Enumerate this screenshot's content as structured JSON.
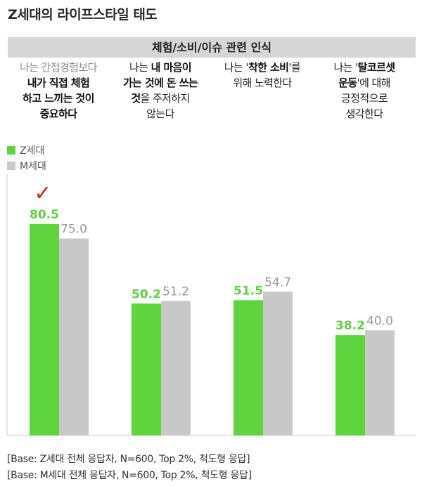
{
  "title": "Z세대의 라이프스타일 태도",
  "banner": "체험/소비/이슈 관련 인식",
  "descriptions": [
    {
      "lines": [
        [
          {
            "t": "나는 간접경험보다",
            "s": "gray"
          }
        ],
        [
          {
            "t": "내가 직접 체험",
            "s": "bold"
          }
        ],
        [
          {
            "t": "하고 느끼는 것이",
            "s": "bold"
          }
        ],
        [
          {
            "t": "중요하다",
            "s": "bold"
          }
        ]
      ]
    },
    {
      "lines": [
        [
          {
            "t": "나는 ",
            "s": "normal"
          },
          {
            "t": "내 마음이",
            "s": "bold"
          }
        ],
        [
          {
            "t": "가는 것에 돈 쓰는",
            "s": "bold"
          }
        ],
        [
          {
            "t": "것",
            "s": "bold"
          },
          {
            "t": "을 주저하지",
            "s": "normal"
          }
        ],
        [
          {
            "t": "않는다",
            "s": "normal"
          }
        ]
      ]
    },
    {
      "lines": [
        [
          {
            "t": "나는 '",
            "s": "normal"
          },
          {
            "t": "착한 소비",
            "s": "bold"
          },
          {
            "t": "'를",
            "s": "normal"
          }
        ],
        [
          {
            "t": "위해 노력한다",
            "s": "normal"
          }
        ]
      ]
    },
    {
      "lines": [
        [
          {
            "t": "나는 '",
            "s": "normal"
          },
          {
            "t": "탈코르셋",
            "s": "bold"
          }
        ],
        [
          {
            "t": "운동",
            "s": "bold"
          },
          {
            "t": "'에 대해",
            "s": "normal"
          }
        ],
        [
          {
            "t": "긍정적으로",
            "s": "normal"
          }
        ],
        [
          {
            "t": "생각한다",
            "s": "normal"
          }
        ]
      ]
    }
  ],
  "colors": {
    "z": "#5ed43d",
    "m": "#c8c8c8",
    "check": "#e02020",
    "m_label": "#999999"
  },
  "chart_data": {
    "type": "bar",
    "categories": [
      "나는 간접경험보다 내가 직접 체험하고 느끼는 것이 중요하다",
      "나는 내 마음이 가는 것에 돈 쓰는 것을 주저하지 않는다",
      "나는 '착한 소비'를 위해 노력한다",
      "나는 '탈코르셋 운동'에 대해 긍정적으로 생각한다"
    ],
    "series": [
      {
        "name": "Z세대",
        "values": [
          80.5,
          50.2,
          51.5,
          38.2
        ]
      },
      {
        "name": "M세대",
        "values": [
          75.0,
          51.2,
          54.7,
          40.0
        ]
      }
    ],
    "value_labels": [
      [
        "80.5",
        "50.2",
        "51.5",
        "38.2"
      ],
      [
        "75.0",
        "51.2",
        "54.7",
        "40.0"
      ]
    ],
    "check_mark": "✓",
    "highlight_category": 0,
    "legend_position": "top-left",
    "ylim": [
      0,
      100
    ],
    "grid": false
  },
  "notes": [
    "[Base: Z세대 전체 응답자, N=600, Top 2%, 척도형 응답]",
    "[Base: M세대 전체 응답자, N=600, Top 2%, 척도형 응답]"
  ]
}
